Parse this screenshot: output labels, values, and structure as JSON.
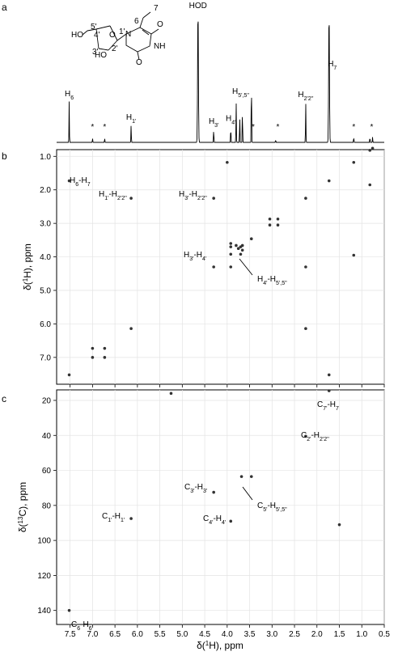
{
  "panel_labels": [
    "a",
    "b",
    "c"
  ],
  "chart_data": [
    {
      "type": "line",
      "panel": "a",
      "peak_labels": [
        {
          "text": "H6",
          "main": "H",
          "sub": "6",
          "ppm": 7.52
        },
        {
          "text": "H1'",
          "main": "H",
          "sub": "1'",
          "ppm": 6.14
        },
        {
          "text": "HOD",
          "main": "HOD",
          "sub": "",
          "ppm": 4.65
        },
        {
          "text": "H3'",
          "main": "H",
          "sub": "3'",
          "ppm": 4.3
        },
        {
          "text": "H4'",
          "main": "H",
          "sub": "4'",
          "ppm": 3.92
        },
        {
          "text": "H5'5''",
          "main": "H",
          "sub": "5',5''",
          "ppm": 3.7
        },
        {
          "text": "H2'2''",
          "main": "H",
          "sub": "2'2''",
          "ppm": 2.25
        },
        {
          "text": "H7",
          "main": "H",
          "sub": "7",
          "ppm": 1.73
        }
      ],
      "impurity_marks": [
        {
          "text": "*",
          "ppm": 7.0
        },
        {
          "text": "*",
          "ppm": 6.73
        },
        {
          "text": "*",
          "ppm": 3.42
        },
        {
          "text": "*",
          "ppm": 2.87
        },
        {
          "text": "*",
          "ppm": 1.18
        },
        {
          "text": "*",
          "ppm": 0.78
        }
      ],
      "peaks": [
        {
          "ppm": 7.52,
          "height": 0.3
        },
        {
          "ppm": 7.0,
          "height": 0.03
        },
        {
          "ppm": 6.73,
          "height": 0.03
        },
        {
          "ppm": 6.14,
          "height": 0.13
        },
        {
          "ppm": 4.65,
          "height": 1.0
        },
        {
          "ppm": 4.3,
          "height": 0.1
        },
        {
          "ppm": 3.92,
          "height": 0.12
        },
        {
          "ppm": 3.8,
          "height": 0.3
        },
        {
          "ppm": 3.72,
          "height": 0.2
        },
        {
          "ppm": 3.66,
          "height": 0.25
        },
        {
          "ppm": 3.46,
          "height": 0.5
        },
        {
          "ppm": 2.92,
          "height": 0.02
        },
        {
          "ppm": 2.25,
          "height": 0.3
        },
        {
          "ppm": 1.73,
          "height": 0.97
        },
        {
          "ppm": 1.18,
          "height": 0.04
        },
        {
          "ppm": 0.82,
          "height": 0.04
        },
        {
          "ppm": 0.76,
          "height": 0.04
        }
      ],
      "structure_labels": [
        "7",
        "6",
        "5'",
        "4'",
        "3'",
        "2'",
        "1'",
        "O",
        "HO",
        "HO",
        "N",
        "NH",
        "O",
        "O"
      ]
    },
    {
      "type": "scatter",
      "panel": "b",
      "xlabel": "δ(1H), ppm",
      "ylabel": "δ(1H), ppm",
      "xlim": [
        7.8,
        0.5
      ],
      "ylim": [
        0.8,
        7.8
      ],
      "yticks": [
        "1.0",
        "2.0",
        "3.0",
        "4.0",
        "5.0",
        "6.0",
        "7.0"
      ],
      "annotations": [
        {
          "text": "H6-H7",
          "parts": [
            "H",
            "6",
            "-H",
            "7"
          ]
        },
        {
          "text": "H1'-H2'2''",
          "parts": [
            "H",
            "1'",
            "-H",
            "2'2''"
          ]
        },
        {
          "text": "H3'-H2'2''",
          "parts": [
            "H",
            "3'",
            "-H",
            "2'2''"
          ]
        },
        {
          "text": "H3'-H4'",
          "parts": [
            "H",
            "3'",
            "-H",
            "4'"
          ]
        },
        {
          "text": "H4'-H5'5''",
          "parts": [
            "H",
            "4'",
            "-H",
            "5',5''"
          ]
        }
      ],
      "points": [
        {
          "x": 7.52,
          "y": 7.52
        },
        {
          "x": 7.52,
          "y": 1.73
        },
        {
          "x": 6.14,
          "y": 6.14
        },
        {
          "x": 6.14,
          "y": 2.25
        },
        {
          "x": 4.3,
          "y": 4.3
        },
        {
          "x": 4.3,
          "y": 2.25
        },
        {
          "x": 3.92,
          "y": 3.92
        },
        {
          "x": 3.92,
          "y": 4.3
        },
        {
          "x": 2.25,
          "y": 2.25
        },
        {
          "x": 2.25,
          "y": 6.14
        },
        {
          "x": 2.25,
          "y": 4.3
        },
        {
          "x": 1.73,
          "y": 1.73
        },
        {
          "x": 1.73,
          "y": 7.52
        },
        {
          "x": 3.75,
          "y": 3.75
        },
        {
          "x": 3.7,
          "y": 3.7
        },
        {
          "x": 3.66,
          "y": 3.66
        },
        {
          "x": 3.8,
          "y": 3.66
        },
        {
          "x": 3.66,
          "y": 3.8
        },
        {
          "x": 3.92,
          "y": 3.7
        },
        {
          "x": 3.7,
          "y": 3.92
        },
        {
          "x": 3.46,
          "y": 3.46
        },
        {
          "x": 3.92,
          "y": 3.6
        },
        {
          "x": 3.05,
          "y": 2.87
        },
        {
          "x": 2.87,
          "y": 3.05
        },
        {
          "x": 3.05,
          "y": 3.05
        },
        {
          "x": 2.87,
          "y": 2.87
        },
        {
          "x": 7.0,
          "y": 6.73
        },
        {
          "x": 6.73,
          "y": 7.0
        },
        {
          "x": 7.0,
          "y": 7.0
        },
        {
          "x": 6.73,
          "y": 6.73
        },
        {
          "x": 1.18,
          "y": 1.18
        },
        {
          "x": 0.82,
          "y": 0.82
        },
        {
          "x": 0.76,
          "y": 0.76
        },
        {
          "x": 4.0,
          "y": 1.18
        },
        {
          "x": 1.18,
          "y": 3.95
        },
        {
          "x": 0.82,
          "y": 1.85
        }
      ]
    },
    {
      "type": "scatter",
      "panel": "c",
      "xlabel": "δ(1H), ppm",
      "ylabel": "δ(13C), ppm",
      "xlim": [
        7.8,
        0.5
      ],
      "ylim": [
        14,
        148
      ],
      "xticks": [
        "7.5",
        "7.0",
        "6.5",
        "6.0",
        "5.5",
        "5.0",
        "4.5",
        "4.0",
        "3.5",
        "3.0",
        "2.5",
        "2.0",
        "1.5",
        "1.0",
        "0.5"
      ],
      "yticks": [
        "20",
        "40",
        "60",
        "80",
        "100",
        "120",
        "140"
      ],
      "annotations": [
        {
          "text": "C7'-H7",
          "parts": [
            "C",
            "7'",
            "-H",
            "7"
          ]
        },
        {
          "text": "C2'-H2'2''",
          "parts": [
            "C",
            "2'",
            "-H",
            "2'2''"
          ]
        },
        {
          "text": "C3'-H3'",
          "parts": [
            "C",
            "3'",
            "-H",
            "3'"
          ]
        },
        {
          "text": "C5'-H5'5''",
          "parts": [
            "C",
            "5'",
            "-H",
            "5',5''"
          ]
        },
        {
          "text": "C1'-H1'",
          "parts": [
            "C",
            "1'",
            "-H",
            "1'"
          ]
        },
        {
          "text": "C4'-H4'",
          "parts": [
            "C",
            "4'",
            "-H",
            "4'"
          ]
        },
        {
          "text": "C6-H6",
          "parts": [
            "C",
            "6",
            "-H",
            "6"
          ]
        }
      ],
      "points": [
        {
          "x": 1.73,
          "y": 14.5
        },
        {
          "x": 2.25,
          "y": 40.5
        },
        {
          "x": 4.3,
          "y": 72.5
        },
        {
          "x": 3.68,
          "y": 63.5
        },
        {
          "x": 3.46,
          "y": 63.5
        },
        {
          "x": 6.14,
          "y": 87.5
        },
        {
          "x": 3.92,
          "y": 89
        },
        {
          "x": 7.52,
          "y": 140
        },
        {
          "x": 5.25,
          "y": 16
        },
        {
          "x": 1.5,
          "y": 91
        }
      ]
    }
  ]
}
